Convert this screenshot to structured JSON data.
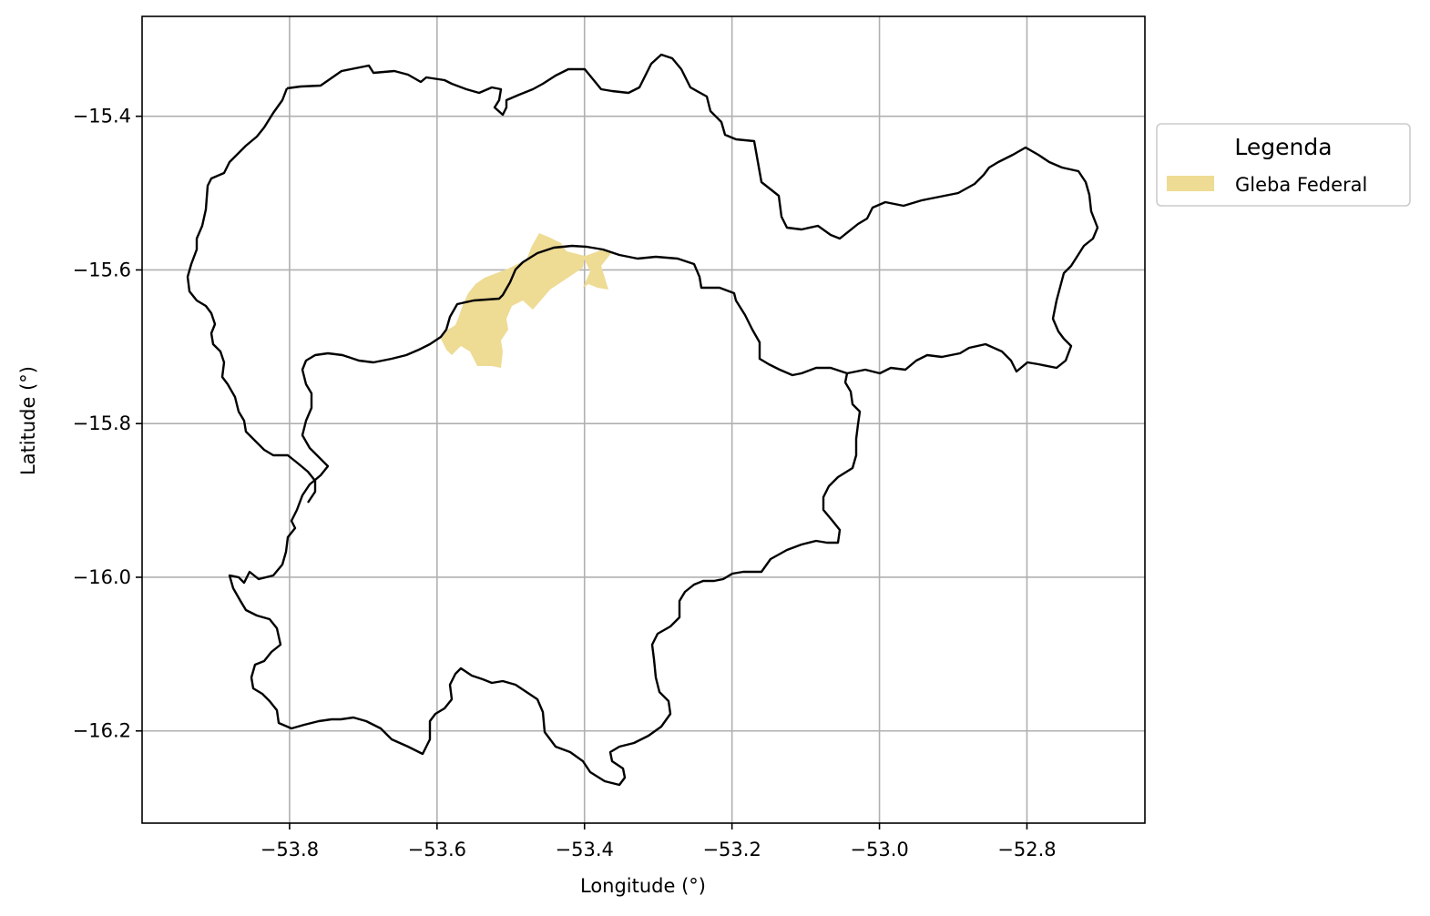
{
  "map": {
    "xlabel": "Longitude (°)",
    "ylabel": "Latitude (°)",
    "x_ticks": [
      {
        "value": -53.8,
        "label": "−53.8"
      },
      {
        "value": -53.6,
        "label": "−53.6"
      },
      {
        "value": -53.4,
        "label": "−53.4"
      },
      {
        "value": -53.2,
        "label": "−53.2"
      },
      {
        "value": -53.0,
        "label": "−53.0"
      },
      {
        "value": -52.8,
        "label": "−52.8"
      }
    ],
    "y_ticks": [
      {
        "value": -15.4,
        "label": "−15.4"
      },
      {
        "value": -15.6,
        "label": "−15.6"
      },
      {
        "value": -15.8,
        "label": "−15.8"
      },
      {
        "value": -16.0,
        "label": "−16.0"
      },
      {
        "value": -16.2,
        "label": "−16.2"
      }
    ],
    "xlim": [
      -54.0,
      -52.64
    ],
    "ylim": [
      -16.32,
      -15.27
    ],
    "grid": true,
    "legend": {
      "title": "Legenda",
      "placement": "outside-right-top",
      "entries": [
        {
          "label": "Gleba Federal",
          "color": "#eedb94"
        }
      ]
    },
    "colors": {
      "boundary": "#000000",
      "gleba": "#eedb94",
      "grid": "#b0b0b0"
    }
  }
}
